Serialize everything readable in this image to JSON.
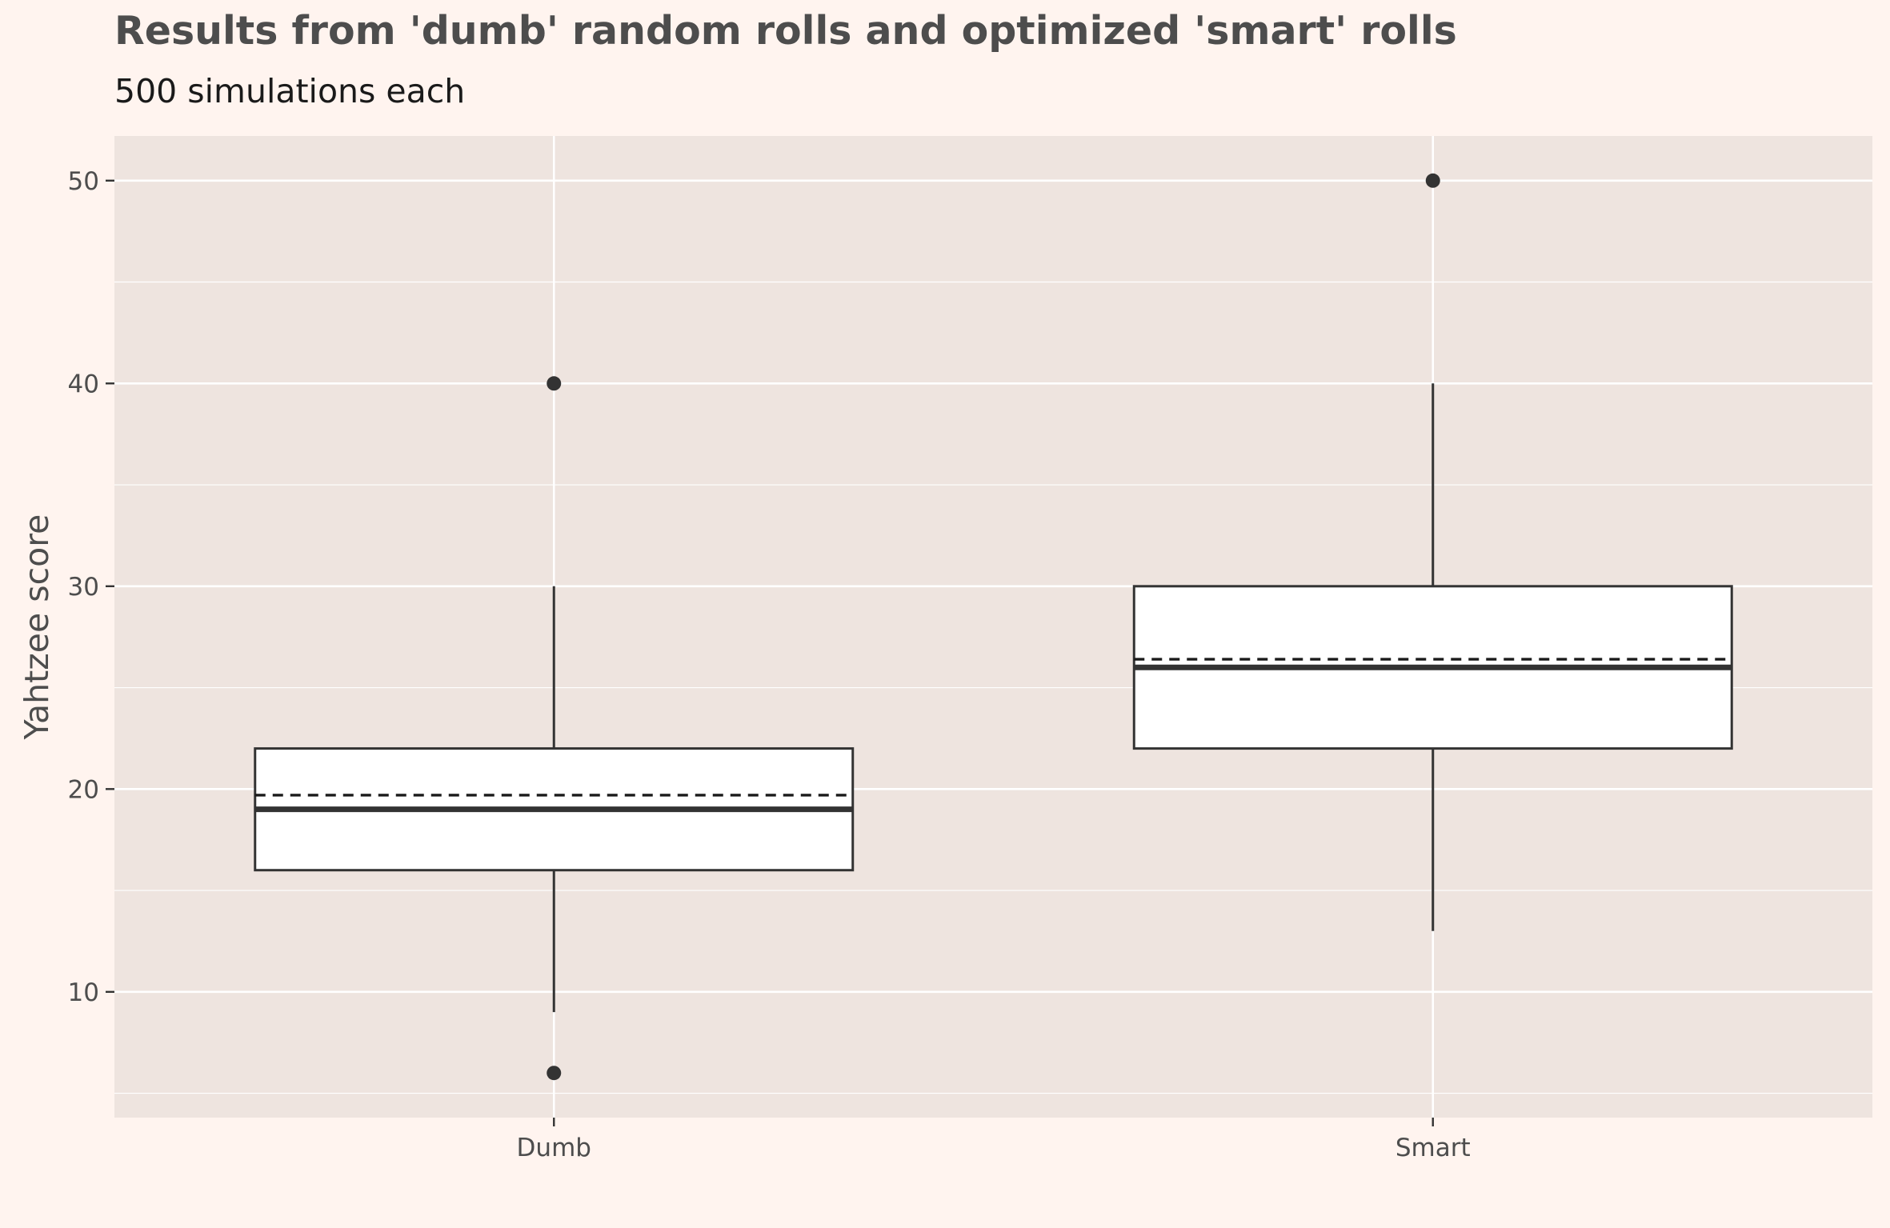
{
  "chart_data": {
    "type": "box",
    "title": "Results from 'dumb' random rolls and optimized 'smart' rolls",
    "subtitle": "500 simulations each",
    "xlabel": "",
    "ylabel": "Yahtzee score",
    "ylim": [
      3.8,
      52.2
    ],
    "yticks": [
      10,
      20,
      30,
      40,
      50
    ],
    "grid": true,
    "categories": [
      "Dumb",
      "Smart"
    ],
    "boxes": [
      {
        "category": "Dumb",
        "whisker_low": 9,
        "q1": 16,
        "median": 19,
        "mean": 19.7,
        "q3": 22,
        "whisker_high": 30,
        "outliers": [
          6,
          40
        ]
      },
      {
        "category": "Smart",
        "whisker_low": 13,
        "q1": 22,
        "median": 26,
        "mean": 26.4,
        "q3": 30,
        "whisker_high": 40,
        "outliers": [
          50
        ]
      }
    ],
    "colors": {
      "page_background": "#FFF4EF",
      "panel_background": "#EEE4DF",
      "grid": "#FFFFFF",
      "box_fill": "#FFFFFF",
      "box_line": "#333333",
      "text": "#4D4D4D"
    }
  }
}
